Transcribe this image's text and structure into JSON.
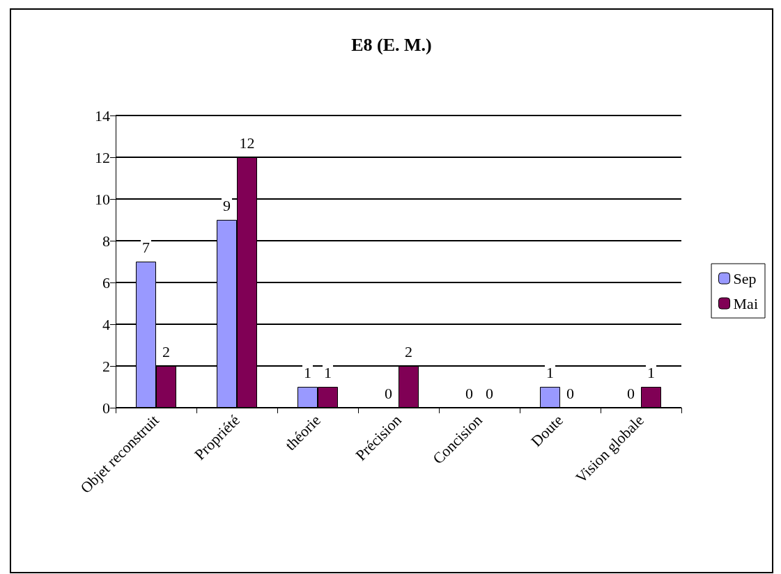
{
  "chart_data": {
    "type": "bar",
    "title": "E8 (E. M.)",
    "categories": [
      "Objet reconstruit",
      "Propriété",
      "théorie",
      "Précision",
      "Concision",
      "Doute",
      "Vision globale"
    ],
    "series": [
      {
        "name": "Sep",
        "color": "#9999ff",
        "values": [
          7,
          9,
          1,
          0,
          0,
          1,
          0
        ]
      },
      {
        "name": "Mai",
        "color": "#800055",
        "values": [
          2,
          12,
          1,
          2,
          0,
          0,
          1
        ]
      }
    ],
    "ylim": [
      0,
      14
    ],
    "yticks": [
      0,
      2,
      4,
      6,
      8,
      10,
      12,
      14
    ],
    "grid": "y",
    "legend": "right",
    "data_labels": true
  }
}
